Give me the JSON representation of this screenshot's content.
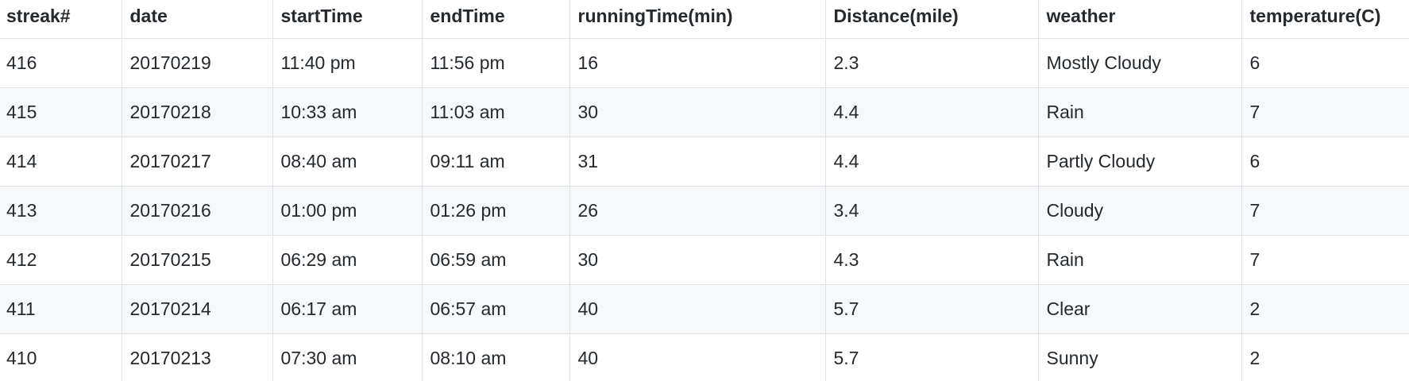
{
  "table": {
    "headers": [
      "streak#",
      "date",
      "startTime",
      "endTime",
      "runningTime(min)",
      "Distance(mile)",
      "weather",
      "temperature(C)"
    ],
    "rows": [
      [
        "416",
        "20170219",
        "11:40 pm",
        "11:56 pm",
        "16",
        "2.3",
        "Mostly Cloudy",
        "6"
      ],
      [
        "415",
        "20170218",
        "10:33 am",
        "11:03 am",
        "30",
        "4.4",
        "Rain",
        "7"
      ],
      [
        "414",
        "20170217",
        "08:40 am",
        "09:11 am",
        "31",
        "4.4",
        "Partly Cloudy",
        "6"
      ],
      [
        "413",
        "20170216",
        "01:00 pm",
        "01:26 pm",
        "26",
        "3.4",
        "Cloudy",
        "7"
      ],
      [
        "412",
        "20170215",
        "06:29 am",
        "06:59 am",
        "30",
        "4.3",
        "Rain",
        "7"
      ],
      [
        "411",
        "20170214",
        "06:17 am",
        "06:57 am",
        "40",
        "5.7",
        "Clear",
        "2"
      ],
      [
        "410",
        "20170213",
        "07:30 am",
        "08:10 am",
        "40",
        "5.7",
        "Sunny",
        "2"
      ]
    ]
  }
}
